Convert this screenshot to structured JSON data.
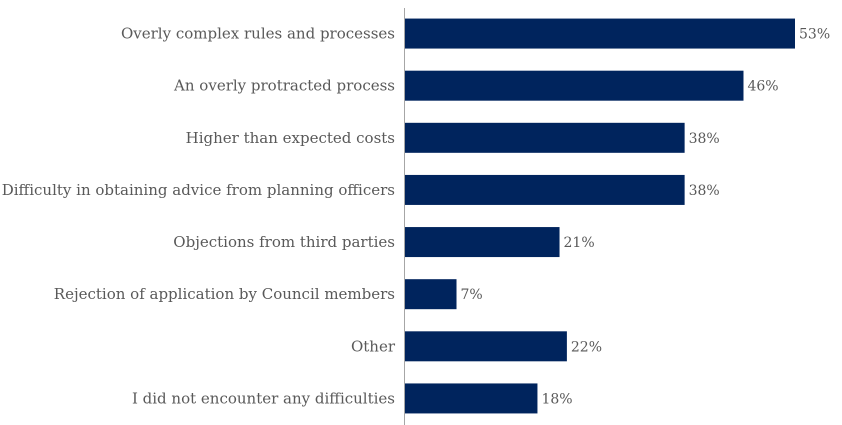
{
  "chart_data": {
    "type": "bar",
    "orientation": "horizontal",
    "title": "",
    "xlabel": "",
    "ylabel": "",
    "categories": [
      "Overly complex rules and processes",
      "An overly protracted process",
      "Higher than expected costs",
      "Difficulty in obtaining advice from planning officers",
      "Objections from third parties",
      "Rejection of application by Council members",
      "Other",
      "I did not encounter any difficulties"
    ],
    "values": [
      53,
      46,
      38,
      38,
      21,
      7,
      22,
      18
    ],
    "value_labels": [
      "53%",
      "46%",
      "38%",
      "38%",
      "21%",
      "7%",
      "22%",
      "18%"
    ],
    "value_unit": "%",
    "xlim": [
      0,
      53
    ],
    "grid": false,
    "legend": "none",
    "bar_color": "#00245D",
    "axis_color": "#A6A6A6",
    "text_color": "#595959"
  }
}
